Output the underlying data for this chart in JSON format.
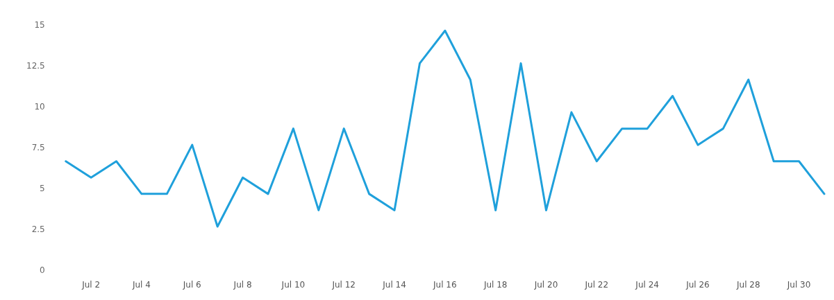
{
  "chart_data": {
    "type": "line",
    "categories": [
      null,
      "Jul 2",
      null,
      "Jul 4",
      null,
      "Jul 6",
      null,
      "Jul 8",
      null,
      "Jul 10",
      null,
      "Jul 12",
      null,
      "Jul 14",
      null,
      "Jul 16",
      null,
      "Jul 18",
      null,
      "Jul 20",
      null,
      "Jul 22",
      null,
      "Jul 24",
      null,
      "Jul 26",
      null,
      "Jul 28",
      null,
      "Jul 30",
      null
    ],
    "series": [
      {
        "color": "#1fa0db",
        "values": [
          6.7,
          5.7,
          6.7,
          4.7,
          4.7,
          7.7,
          2.7,
          5.7,
          4.7,
          8.7,
          3.7,
          8.7,
          4.7,
          3.7,
          12.7,
          14.7,
          11.7,
          3.7,
          12.7,
          3.7,
          9.7,
          6.7,
          8.7,
          8.7,
          10.7,
          7.7,
          8.7,
          11.7,
          6.7,
          6.7,
          4.7
        ]
      }
    ],
    "ylim": [
      0,
      15
    ],
    "yticks": [
      0,
      2.5,
      5,
      7.5,
      10,
      12.5,
      15
    ],
    "grid": false,
    "legend": false,
    "marker": "none",
    "line_style": "solid"
  }
}
